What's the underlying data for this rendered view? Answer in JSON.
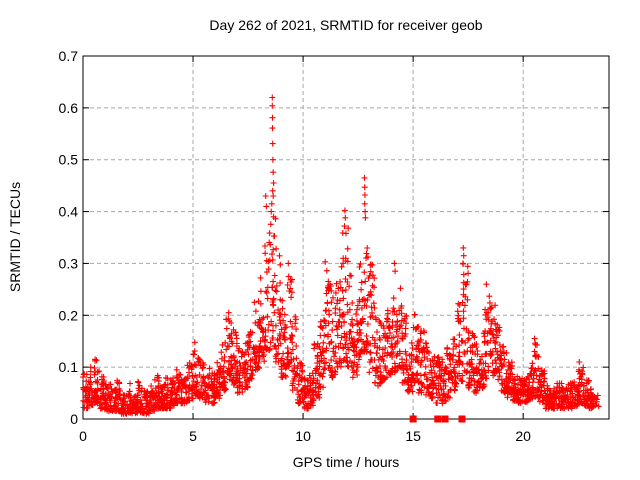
{
  "window": {
    "background_color": "#ffffff"
  },
  "colors": {
    "marker": "#ff0000",
    "grid": "#a6a6a6",
    "axis": "#000000",
    "text": "#000000",
    "background": "#ffffff"
  },
  "chart_data": {
    "type": "scatter",
    "title": "Day 262 of 2021, SRMTID for receiver geob",
    "xlabel": "GPS time / hours",
    "ylabel": "SRMTID / TECUs",
    "xlim": [
      0,
      23.9
    ],
    "ylim": [
      0,
      0.7
    ],
    "x_ticks": [
      0,
      5,
      10,
      15,
      20
    ],
    "y_ticks": [
      0,
      0.1,
      0.2,
      0.3,
      0.4,
      0.5,
      0.6,
      0.7
    ],
    "grid": true,
    "legend": "none",
    "marker_shape": "plus",
    "marker_color": "#ff0000",
    "bin_hours": 0.25,
    "points_per_bin": 28,
    "envelope_bins": [
      [
        0.0,
        0.02,
        0.09
      ],
      [
        0.25,
        0.025,
        0.1
      ],
      [
        0.5,
        0.03,
        0.115
      ],
      [
        0.75,
        0.02,
        0.09
      ],
      [
        1.0,
        0.015,
        0.07
      ],
      [
        1.25,
        0.015,
        0.06
      ],
      [
        1.5,
        0.015,
        0.075
      ],
      [
        1.75,
        0.01,
        0.055
      ],
      [
        2.0,
        0.01,
        0.07
      ],
      [
        2.25,
        0.01,
        0.05
      ],
      [
        2.5,
        0.012,
        0.075
      ],
      [
        2.75,
        0.01,
        0.055
      ],
      [
        3.0,
        0.015,
        0.065
      ],
      [
        3.25,
        0.02,
        0.085
      ],
      [
        3.5,
        0.02,
        0.07
      ],
      [
        3.75,
        0.02,
        0.08
      ],
      [
        4.0,
        0.025,
        0.09
      ],
      [
        4.25,
        0.03,
        0.1
      ],
      [
        4.5,
        0.03,
        0.08
      ],
      [
        4.75,
        0.035,
        0.11
      ],
      [
        5.0,
        0.045,
        0.14
      ],
      [
        5.25,
        0.04,
        0.115
      ],
      [
        5.5,
        0.03,
        0.1
      ],
      [
        5.75,
        0.03,
        0.09
      ],
      [
        6.0,
        0.04,
        0.11
      ],
      [
        6.25,
        0.055,
        0.15
      ],
      [
        6.5,
        0.07,
        0.2
      ],
      [
        6.75,
        0.065,
        0.175
      ],
      [
        7.0,
        0.05,
        0.14
      ],
      [
        7.25,
        0.055,
        0.15
      ],
      [
        7.5,
        0.075,
        0.185
      ],
      [
        7.75,
        0.095,
        0.24
      ],
      [
        8.0,
        0.11,
        0.28
      ],
      [
        8.25,
        0.13,
        0.36
      ],
      [
        8.5,
        0.14,
        0.45
      ],
      [
        8.75,
        0.11,
        0.35
      ],
      [
        9.0,
        0.08,
        0.24
      ],
      [
        9.25,
        0.1,
        0.28
      ],
      [
        9.5,
        0.055,
        0.2
      ],
      [
        9.75,
        0.03,
        0.12
      ],
      [
        10.0,
        0.02,
        0.08
      ],
      [
        10.25,
        0.025,
        0.09
      ],
      [
        10.5,
        0.04,
        0.15
      ],
      [
        10.75,
        0.06,
        0.2
      ],
      [
        11.0,
        0.09,
        0.31
      ],
      [
        11.25,
        0.08,
        0.26
      ],
      [
        11.5,
        0.1,
        0.3
      ],
      [
        11.75,
        0.11,
        0.36
      ],
      [
        12.0,
        0.1,
        0.33
      ],
      [
        12.25,
        0.08,
        0.22
      ],
      [
        12.5,
        0.11,
        0.3
      ],
      [
        12.75,
        0.13,
        0.34
      ],
      [
        13.0,
        0.09,
        0.3
      ],
      [
        13.25,
        0.06,
        0.2
      ],
      [
        13.5,
        0.07,
        0.2
      ],
      [
        13.75,
        0.08,
        0.22
      ],
      [
        14.0,
        0.09,
        0.25
      ],
      [
        14.25,
        0.09,
        0.27
      ],
      [
        14.5,
        0.07,
        0.2
      ],
      [
        14.75,
        0.05,
        0.15
      ],
      [
        15.0,
        0.07,
        0.21
      ],
      [
        15.25,
        0.05,
        0.18
      ],
      [
        15.5,
        0.045,
        0.16
      ],
      [
        15.75,
        0.04,
        0.13
      ],
      [
        16.0,
        0.03,
        0.12
      ],
      [
        16.25,
        0.03,
        0.12
      ],
      [
        16.5,
        0.04,
        0.14
      ],
      [
        16.75,
        0.055,
        0.16
      ],
      [
        17.0,
        0.07,
        0.23
      ],
      [
        17.25,
        0.09,
        0.3
      ],
      [
        17.5,
        0.06,
        0.2
      ],
      [
        17.75,
        0.05,
        0.17
      ],
      [
        18.0,
        0.06,
        0.18
      ],
      [
        18.25,
        0.075,
        0.25
      ],
      [
        18.5,
        0.08,
        0.22
      ],
      [
        18.75,
        0.075,
        0.19
      ],
      [
        19.0,
        0.05,
        0.14
      ],
      [
        19.25,
        0.04,
        0.11
      ],
      [
        19.5,
        0.035,
        0.095
      ],
      [
        19.75,
        0.03,
        0.08
      ],
      [
        20.0,
        0.03,
        0.09
      ],
      [
        20.25,
        0.035,
        0.115
      ],
      [
        20.5,
        0.04,
        0.15
      ],
      [
        20.75,
        0.03,
        0.095
      ],
      [
        21.0,
        0.02,
        0.065
      ],
      [
        21.25,
        0.02,
        0.06
      ],
      [
        21.5,
        0.02,
        0.07
      ],
      [
        21.75,
        0.02,
        0.06
      ],
      [
        22.0,
        0.02,
        0.07
      ],
      [
        22.25,
        0.025,
        0.08
      ],
      [
        22.5,
        0.03,
        0.1
      ],
      [
        22.75,
        0.025,
        0.08
      ],
      [
        23.0,
        0.02,
        0.06
      ],
      [
        23.25,
        0.02,
        0.05,
        6
      ]
    ],
    "outliers": [
      [
        0.55,
        0.115
      ],
      [
        5.08,
        0.148
      ],
      [
        6.62,
        0.205
      ],
      [
        8.3,
        0.43
      ],
      [
        8.33,
        0.41
      ],
      [
        8.55,
        0.4
      ],
      [
        8.58,
        0.415
      ],
      [
        8.6,
        0.62
      ],
      [
        8.6,
        0.604
      ],
      [
        8.61,
        0.581
      ],
      [
        8.61,
        0.561
      ],
      [
        8.62,
        0.531
      ],
      [
        8.63,
        0.5
      ],
      [
        8.64,
        0.476
      ],
      [
        8.66,
        0.455
      ],
      [
        8.62,
        0.44
      ],
      [
        8.64,
        0.43
      ],
      [
        8.66,
        0.39
      ],
      [
        9.33,
        0.3
      ],
      [
        11.88,
        0.372
      ],
      [
        11.9,
        0.402
      ],
      [
        11.92,
        0.388
      ],
      [
        11.95,
        0.358
      ],
      [
        12.05,
        0.368
      ],
      [
        12.79,
        0.465
      ],
      [
        12.8,
        0.447
      ],
      [
        12.81,
        0.432
      ],
      [
        12.8,
        0.415
      ],
      [
        12.82,
        0.4
      ],
      [
        12.83,
        0.388
      ],
      [
        14.15,
        0.3
      ],
      [
        14.18,
        0.285
      ],
      [
        17.26,
        0.3
      ],
      [
        17.28,
        0.33
      ],
      [
        17.3,
        0.315
      ],
      [
        18.33,
        0.26
      ],
      [
        20.52,
        0.155
      ],
      [
        22.55,
        0.11
      ]
    ],
    "zero_value_markers_hours": [
      15.0,
      16.12,
      16.45,
      17.22
    ]
  }
}
